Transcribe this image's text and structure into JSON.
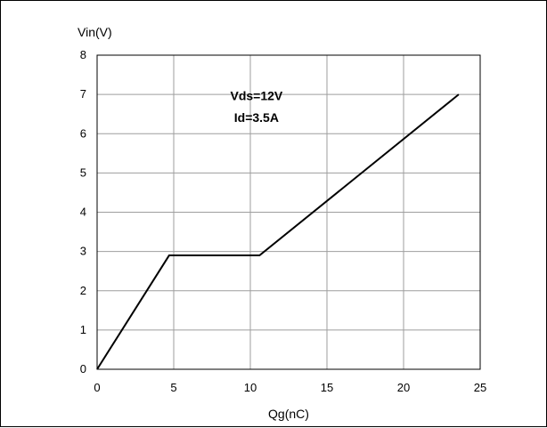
{
  "chart_data": {
    "type": "line",
    "title": "",
    "xlabel": "Qg(nC)",
    "ylabel": "Vin(V)",
    "xlim": [
      0,
      25
    ],
    "ylim": [
      0,
      8
    ],
    "x_ticks": [
      0,
      5,
      10,
      15,
      20,
      25
    ],
    "y_ticks": [
      0,
      1,
      2,
      3,
      4,
      5,
      6,
      7,
      8
    ],
    "grid": true,
    "annotations": [
      {
        "text": "Vds=12V",
        "x": 10.4,
        "y": 6.85
      },
      {
        "text": "Id=3.5A",
        "x": 10.4,
        "y": 6.3
      }
    ],
    "series": [
      {
        "color": "#000000",
        "points": [
          [
            0,
            0
          ],
          [
            4.7,
            2.9
          ],
          [
            10.6,
            2.9
          ],
          [
            23.6,
            7.0
          ]
        ]
      }
    ]
  }
}
